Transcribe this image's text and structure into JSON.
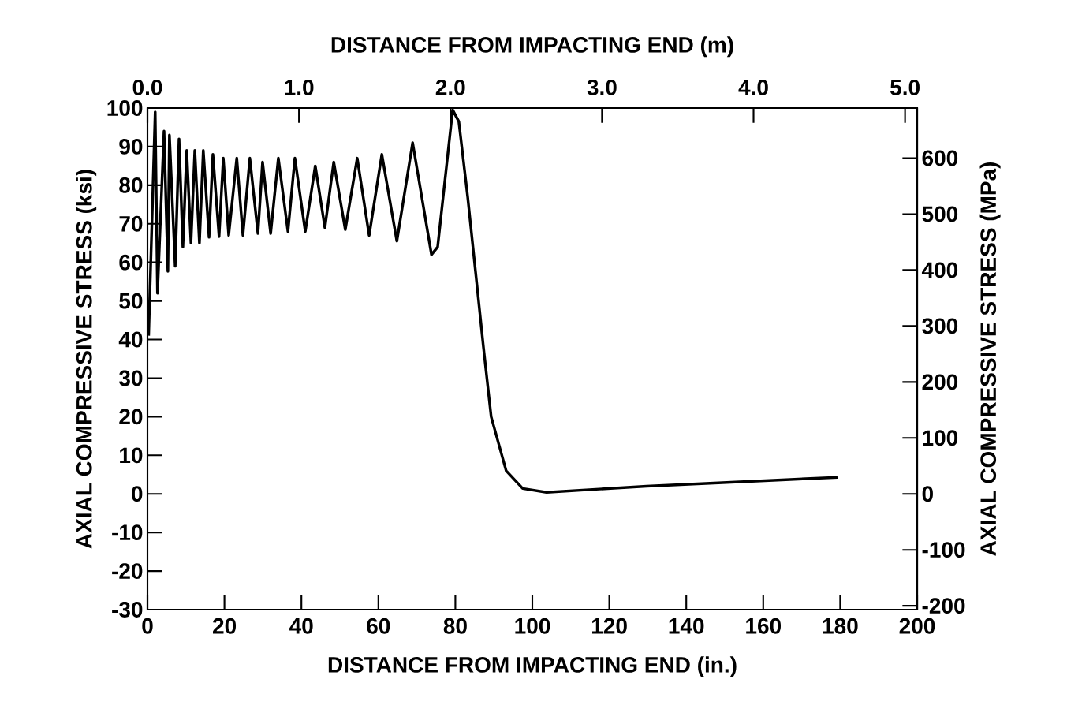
{
  "chart_data": {
    "type": "line",
    "xlabel": "DISTANCE FROM IMPACTING END (in.)",
    "x2label": "DISTANCE FROM IMPACTING END (m)",
    "ylabel": "AXIAL COMPRESSIVE STRESS (ksi)",
    "y2label": "AXIAL COMPRESSIVE STRESS (MPa)",
    "x": [
      0.3,
      2.0,
      2.6,
      4.3,
      5.3,
      5.7,
      7.2,
      8.2,
      9.2,
      10.2,
      11.3,
      12.3,
      13.5,
      14.5,
      16.0,
      17.0,
      18.6,
      19.7,
      21.1,
      23.2,
      24.8,
      26.6,
      28.7,
      29.9,
      32.0,
      34.0,
      36.5,
      38.3,
      41.0,
      43.6,
      46.1,
      48.4,
      51.4,
      54.5,
      57.6,
      60.9,
      64.8,
      68.9,
      73.8,
      75.4,
      79.3,
      80.9,
      83.2,
      85.2,
      87.3,
      89.3,
      93.2,
      97.5,
      103.7,
      129.7,
      179.3
    ],
    "series": [
      {
        "color": "#000000",
        "values": [
          41,
          99,
          52,
          94,
          57.7,
          93,
          59,
          92,
          64,
          89,
          65,
          89,
          65,
          89,
          66.5,
          88,
          66.7,
          87,
          67,
          87,
          67,
          87,
          67.5,
          86,
          67.5,
          87,
          68,
          87,
          68,
          85,
          69,
          86,
          68.5,
          87,
          67,
          88,
          65.5,
          91,
          62,
          64,
          99.5,
          96.5,
          77,
          58,
          38,
          20,
          6,
          1.4,
          0.4,
          2,
          4.3
        ]
      }
    ],
    "xlim": [
      0,
      200
    ],
    "xticks": [
      0,
      20,
      40,
      60,
      80,
      100,
      120,
      140,
      160,
      180,
      200
    ],
    "ylim": [
      -30,
      100
    ],
    "yticks": [
      -30,
      -20,
      -10,
      0,
      10,
      20,
      30,
      40,
      50,
      60,
      70,
      80,
      90,
      100
    ],
    "x2lim": [
      0,
      5.08
    ],
    "x2ticks": [
      {
        "value": 0,
        "label": "0.0"
      },
      {
        "value": 1,
        "label": "1.0"
      },
      {
        "value": 2,
        "label": "2.0"
      },
      {
        "value": 3,
        "label": "3.0"
      },
      {
        "value": 4,
        "label": "4.0"
      },
      {
        "value": 5,
        "label": "5.0"
      }
    ],
    "y2lim": [
      -206.8,
      689.5
    ],
    "y2ticks": [
      -200,
      -100,
      0,
      100,
      200,
      300,
      400,
      500,
      600
    ],
    "grid": false,
    "marker": "none",
    "line_style": "solid"
  }
}
